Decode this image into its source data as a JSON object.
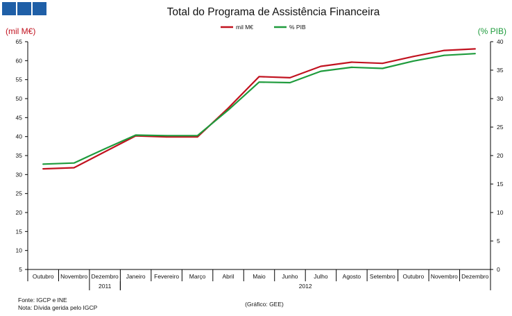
{
  "logo": {
    "icon": "three-blue-squares-logo-icon",
    "color": "#1f5fa7"
  },
  "chart_data": {
    "type": "line",
    "title": "Total do Programa de Assistência Financeira",
    "ylabel_left": "(mil M€)",
    "ylabel_right": "(% PIB)",
    "categories": [
      "Outubro",
      "Novembro",
      "Dezembro",
      "Janeiro",
      "Fevereiro",
      "Março",
      "Abril",
      "Maio",
      "Junho",
      "Julho",
      "Agosto",
      "Setembro",
      "Outubro",
      "Novembro",
      "Dezembro"
    ],
    "year_groups": [
      {
        "label": "2011",
        "start": 2,
        "end": 2
      },
      {
        "label": "2012",
        "start": 3,
        "end": 14
      }
    ],
    "ylim_left": [
      5,
      65
    ],
    "yticks_left": [
      5,
      10,
      15,
      20,
      25,
      30,
      35,
      40,
      45,
      50,
      55,
      60,
      65
    ],
    "ylim_right": [
      0,
      40
    ],
    "yticks_right": [
      0,
      5,
      10,
      15,
      20,
      25,
      30,
      35,
      40
    ],
    "series": [
      {
        "name": "mil M€",
        "axis": "left",
        "color": "#c1121f",
        "values": [
          31.5,
          31.8,
          36.0,
          40.2,
          39.9,
          39.9,
          47.5,
          55.8,
          55.5,
          58.5,
          59.6,
          59.3,
          61.1,
          62.7,
          63.1
        ]
      },
      {
        "name": "% PIB",
        "axis": "right",
        "color": "#1e9b3c",
        "values": [
          18.5,
          18.7,
          21.2,
          23.6,
          23.5,
          23.5,
          28.0,
          32.9,
          32.8,
          34.8,
          35.5,
          35.3,
          36.6,
          37.6,
          37.9
        ]
      }
    ],
    "notes": [
      "Fonte: IGCP e INE",
      "Nota: Dívida gerida pelo IGCP"
    ],
    "credit": "(Gráfico: GEE)"
  }
}
